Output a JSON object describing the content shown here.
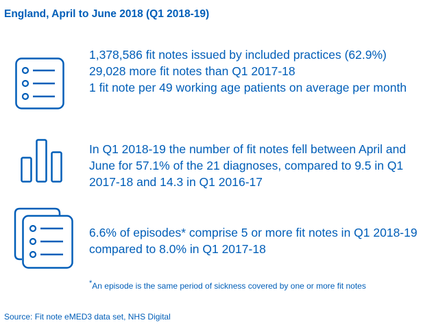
{
  "title": "England, April to June 2018 (Q1 2018-19)",
  "section1": {
    "icon": "list-icon",
    "lines": [
      "1,378,586 fit notes issued by included practices (62.9%)",
      "29,028 more fit notes than Q1 2017-18",
      "1 fit note per 49 working age patients on average per month"
    ]
  },
  "section2": {
    "icon": "bar-chart-icon",
    "text": "In Q1 2018-19 the number of fit notes fell between April and June for 57.1% of the 21 diagnoses, compared to 9.5 in Q1 2017-18 and 14.3 in Q1 2016-17"
  },
  "section3": {
    "icon": "stacked-documents-icon",
    "text": "6.6% of episodes* comprise 5 or more fit notes in Q1 2018-19 compared to 8.0% in Q1 2017-18"
  },
  "footnote": {
    "marker": "*",
    "text": "An episode is the same period of sickness covered by one or more fit notes"
  },
  "source": "Source: Fit note eMED3 data set, NHS Digital",
  "colors": {
    "primary": "#005EB8"
  }
}
